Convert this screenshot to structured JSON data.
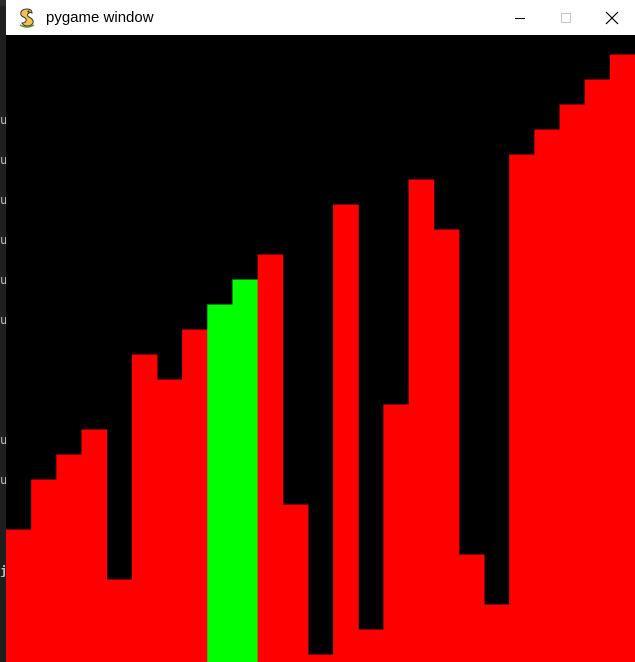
{
  "background_letters": [
    "u",
    "u",
    "u",
    "u",
    "u",
    "u",
    "u",
    "u",
    "j"
  ],
  "window": {
    "title": "pygame window",
    "icon": "pygame-snake-icon",
    "controls": {
      "minimize_icon": "minimize-icon",
      "maximize_icon": "maximize-icon",
      "close_icon": "close-icon"
    }
  },
  "visualization": {
    "type": "sorting-bars",
    "bar_count": 25,
    "max_value": 25,
    "values": [
      5.3,
      7.3,
      8.3,
      9.3,
      3.3,
      12.3,
      11.3,
      13.3,
      14.3,
      15.3,
      16.3,
      6.3,
      0.3,
      18.3,
      1.3,
      10.3,
      19.3,
      17.3,
      4.3,
      2.3,
      20.3,
      21.3,
      22.3,
      23.3,
      24.3
    ],
    "highlighted_indices": [
      8,
      9
    ],
    "colors": {
      "bar": "#ff0000",
      "highlight": "#00ff00",
      "background": "#000000"
    }
  }
}
